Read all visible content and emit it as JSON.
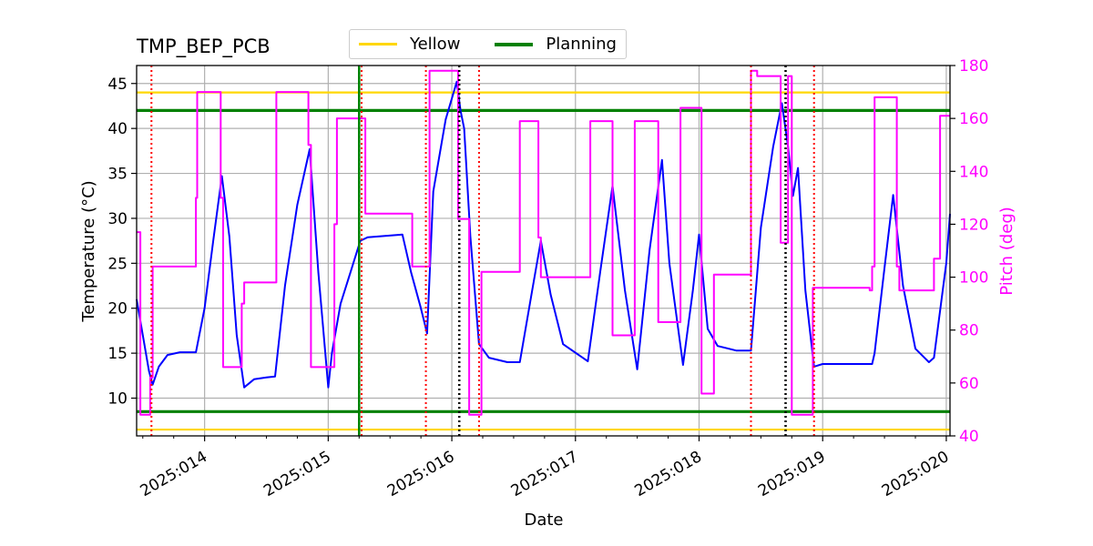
{
  "chart_data": {
    "type": "line",
    "title": "TMP_BEP_PCB",
    "xlabel": "Date",
    "ylabel": "Temperature ($^\\circ$C)",
    "ylabel_display": "Temperature (°C)",
    "y2label": "Pitch (deg)",
    "xlim": [
      2025.0134,
      2025.0201
    ],
    "xlim_days": [
      13.45,
      20.03
    ],
    "ylim": [
      5.8,
      47
    ],
    "y2lim": [
      40,
      180
    ],
    "x_ticks": [
      {
        "day": 14,
        "label": "2025:014"
      },
      {
        "day": 15,
        "label": "2025:015"
      },
      {
        "day": 16,
        "label": "2025:016"
      },
      {
        "day": 17,
        "label": "2025:017"
      },
      {
        "day": 18,
        "label": "2025:018"
      },
      {
        "day": 19,
        "label": "2025:019"
      },
      {
        "day": 20,
        "label": "2025:020"
      }
    ],
    "y_ticks": [
      "10",
      "15",
      "20",
      "25",
      "30",
      "35",
      "40",
      "45"
    ],
    "y2_ticks": [
      "40",
      "60",
      "80",
      "100",
      "120",
      "140",
      "160",
      "180"
    ],
    "grid": true,
    "legend": {
      "placement": "top-center",
      "entries": [
        {
          "name": "Yellow",
          "color": "#FFD700"
        },
        {
          "name": "Planning",
          "color": "#008000"
        }
      ]
    },
    "limits": {
      "yellow": [
        6.5,
        44
      ],
      "planning": [
        8.5,
        42
      ]
    },
    "vlines": {
      "red_dotted_days": [
        13.57,
        15.27,
        15.79,
        16.22,
        18.42,
        18.93
      ],
      "black_dotted_days": [
        16.06,
        18.7
      ],
      "green_solid_days": [
        15.25
      ]
    },
    "series": [
      {
        "name": "",
        "axis": "left",
        "color": "#0000FF",
        "x_days": [
          13.45,
          13.5,
          13.55,
          13.58,
          13.63,
          13.7,
          13.8,
          13.93,
          14.0,
          14.07,
          14.14,
          14.2,
          14.26,
          14.32,
          14.4,
          14.5,
          14.57,
          14.65,
          14.75,
          14.85,
          14.92,
          15.0,
          15.03,
          15.1,
          15.18,
          15.26,
          15.32,
          15.6,
          15.67,
          15.75,
          15.8,
          15.85,
          15.95,
          16.04,
          16.07,
          16.1,
          16.15,
          16.22,
          16.3,
          16.45,
          16.55,
          16.65,
          16.72,
          16.8,
          16.9,
          17.1,
          17.2,
          17.3,
          17.4,
          17.5,
          17.6,
          17.7,
          17.76,
          17.87,
          17.95,
          18.0,
          18.07,
          18.15,
          18.3,
          18.42,
          18.5,
          18.6,
          18.67,
          18.72,
          18.76,
          18.8,
          18.86,
          18.93,
          19.0,
          19.4,
          19.42,
          19.5,
          19.57,
          19.65,
          19.75,
          19.86,
          19.9,
          20.0,
          20.03
        ],
        "y": [
          21,
          17,
          13,
          11.5,
          13.5,
          14.8,
          15.1,
          15.1,
          20,
          27.5,
          34.7,
          28,
          17,
          11.2,
          12.1,
          12.3,
          12.4,
          22.5,
          31.5,
          37.7,
          24,
          11.2,
          15,
          20.5,
          24,
          27.5,
          27.9,
          28.2,
          24,
          20,
          17.2,
          33,
          41,
          45.2,
          42,
          40,
          28,
          16,
          14.5,
          14,
          14,
          22,
          27.5,
          21.5,
          16,
          14.1,
          24,
          33.6,
          22,
          13.2,
          26.5,
          36.5,
          25,
          13.7,
          22,
          28.2,
          17.7,
          15.8,
          15.3,
          15.3,
          29,
          38,
          42.8,
          38,
          32.5,
          35.6,
          22,
          13.5,
          13.8,
          13.8,
          15,
          24.5,
          32.6,
          22.5,
          15.5,
          14,
          14.5,
          25,
          30.5
        ]
      },
      {
        "name": "",
        "axis": "right",
        "color": "#FF00FF",
        "x_days": [
          13.45,
          13.48,
          13.48,
          13.56,
          13.56,
          13.58,
          13.58,
          13.93,
          13.93,
          13.94,
          13.94,
          14.13,
          14.13,
          14.15,
          14.15,
          14.3,
          14.3,
          14.32,
          14.32,
          14.58,
          14.58,
          14.6,
          14.6,
          14.84,
          14.84,
          14.86,
          14.86,
          15.05,
          15.05,
          15.07,
          15.07,
          15.28,
          15.28,
          15.3,
          15.3,
          15.66,
          15.66,
          15.68,
          15.68,
          15.79,
          15.79,
          15.82,
          15.82,
          16.03,
          16.03,
          16.05,
          16.05,
          16.12,
          16.12,
          16.14,
          16.14,
          16.22,
          16.22,
          16.24,
          16.24,
          16.52,
          16.52,
          16.55,
          16.55,
          16.7,
          16.7,
          16.72,
          16.72,
          16.75,
          16.75,
          17.12,
          17.12,
          17.14,
          17.14,
          17.3,
          17.3,
          17.32,
          17.32,
          17.48,
          17.48,
          17.5,
          17.5,
          17.67,
          17.67,
          17.69,
          17.69,
          17.85,
          17.85,
          17.87,
          17.87,
          18.02,
          18.02,
          18.04,
          18.04,
          18.12,
          18.12,
          18.14,
          18.14,
          18.42,
          18.42,
          18.47,
          18.47,
          18.66,
          18.66,
          18.68,
          18.68,
          18.72,
          18.72,
          18.75,
          18.75,
          18.78,
          18.78,
          18.81,
          18.81,
          18.92,
          18.92,
          18.94,
          18.94,
          19.38,
          19.38,
          19.4,
          19.4,
          19.42,
          19.42,
          19.44,
          19.44,
          19.6,
          19.6,
          19.62,
          19.62,
          19.65,
          19.65,
          19.87,
          19.87,
          19.9,
          19.9,
          19.95,
          19.95,
          20.03
        ],
        "y": [
          117,
          117,
          48,
          48,
          62,
          62,
          104,
          104,
          130,
          130,
          170,
          170,
          130,
          130,
          66,
          66,
          90,
          90,
          98,
          98,
          170,
          170,
          170,
          170,
          150,
          150,
          66,
          66,
          120,
          120,
          160,
          160,
          160,
          160,
          124,
          124,
          124,
          124,
          104,
          104,
          104,
          104,
          178,
          178,
          178,
          178,
          122,
          122,
          122,
          122,
          48,
          48,
          48,
          48,
          102,
          102,
          102,
          102,
          159,
          159,
          115,
          115,
          100,
          100,
          100,
          100,
          159,
          159,
          159,
          159,
          78,
          78,
          78,
          78,
          159,
          159,
          159,
          159,
          83,
          83,
          83,
          83,
          164,
          164,
          164,
          164,
          56,
          56,
          56,
          56,
          101,
          101,
          101,
          101,
          178,
          178,
          176,
          176,
          113,
          113,
          113,
          113,
          176,
          176,
          48,
          48,
          48,
          48,
          48,
          48,
          96,
          96,
          96,
          96,
          95,
          95,
          104,
          104,
          168,
          168,
          168,
          168,
          104,
          104,
          95,
          95,
          95,
          95,
          95,
          95,
          107,
          107,
          161,
          161
        ]
      }
    ]
  }
}
